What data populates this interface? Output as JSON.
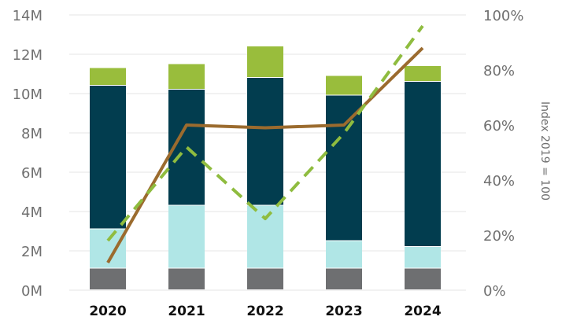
{
  "chart_data": {
    "type": "bar",
    "stacked": true,
    "categories": [
      "2020",
      "2021",
      "2022",
      "2023",
      "2024"
    ],
    "series": [
      {
        "values": [
          1.1,
          1.1,
          1.1,
          1.1,
          1.1
        ],
        "color": "#6e6f71"
      },
      {
        "values": [
          2.0,
          3.2,
          3.2,
          1.4,
          1.1
        ],
        "color": "#b0e6e6"
      },
      {
        "values": [
          7.3,
          5.9,
          6.5,
          7.4,
          8.4
        ],
        "color": "#023d4f"
      },
      {
        "values": [
          0.9,
          1.3,
          1.6,
          1.0,
          0.8
        ],
        "color": "#99bd3c"
      }
    ],
    "lines": [
      {
        "axis": "right",
        "style": "solid",
        "color": "#9b6b2e",
        "values": [
          10,
          60,
          59,
          60,
          88
        ]
      },
      {
        "axis": "right",
        "style": "dashed",
        "color": "#8fbc3f",
        "values": [
          18,
          52,
          26,
          57,
          96
        ]
      }
    ],
    "y_left": {
      "ticks": [
        "0M",
        "2M",
        "4M",
        "6M",
        "8M",
        "10M",
        "12M",
        "14M"
      ],
      "ylim": [
        0,
        14
      ]
    },
    "y_right": {
      "ticks": [
        "0%",
        "20%",
        "40%",
        "60%",
        "80%",
        "100%"
      ],
      "ylim": [
        0,
        100
      ],
      "label": "Index 2019 = 100"
    },
    "grid": true
  }
}
